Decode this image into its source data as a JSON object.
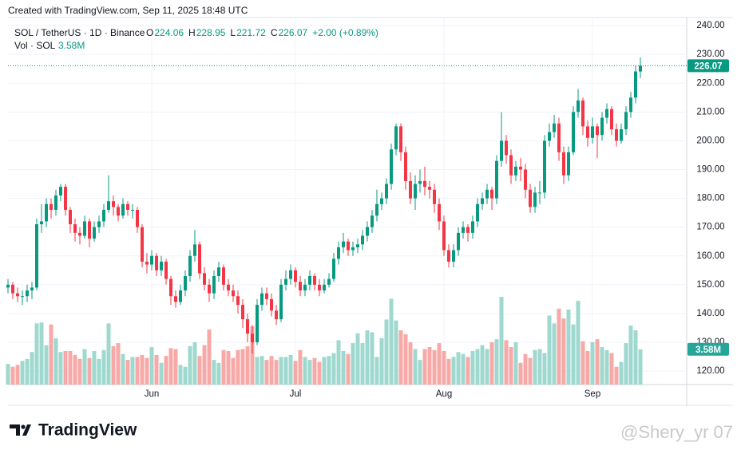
{
  "chart_data": {
    "type": "candlestick",
    "created_text": "Created with TradingView.com, Sep 11, 2025 18:48 UTC",
    "legend": {
      "o": "O",
      "h": "H",
      "l": "L",
      "c": "C",
      "change": "+2.00 (+0.89%)"
    },
    "brand": "TradingView",
    "watermark": "@Shery_yr 07",
    "categories": [
      null,
      null,
      null,
      null,
      null,
      null,
      null,
      null,
      null,
      null,
      null,
      null,
      null,
      null,
      null,
      null,
      null,
      null,
      null,
      null,
      null,
      null,
      null,
      null,
      null,
      null,
      null,
      null,
      null,
      null,
      "Jun",
      null,
      null,
      null,
      null,
      null,
      null,
      null,
      null,
      null,
      null,
      null,
      null,
      null,
      null,
      null,
      null,
      null,
      null,
      null,
      null,
      null,
      null,
      null,
      null,
      null,
      null,
      null,
      null,
      null,
      "Jul",
      null,
      null,
      null,
      null,
      null,
      null,
      null,
      null,
      null,
      null,
      null,
      null,
      null,
      null,
      null,
      null,
      null,
      null,
      null,
      null,
      null,
      null,
      null,
      null,
      null,
      null,
      null,
      null,
      null,
      null,
      "Aug",
      null,
      null,
      null,
      null,
      null,
      null,
      null,
      null,
      null,
      null,
      null,
      null,
      null,
      null,
      null,
      null,
      null,
      null,
      null,
      null,
      null,
      null,
      null,
      null,
      null,
      null,
      null,
      null,
      null,
      null,
      "Sep",
      null,
      null,
      null,
      null,
      null,
      null,
      null,
      null,
      null,
      null
    ],
    "series": [
      {
        "name": "SOL / TetherUS · 1D · Binance",
        "up_color": "#089981",
        "down_color": "#f23645",
        "open": [
          149,
          150,
          147,
          146,
          146,
          148,
          149,
          171,
          172,
          178,
          176,
          181,
          184,
          176,
          171,
          168,
          167,
          172,
          166,
          170,
          172,
          176,
          179,
          177,
          174,
          178,
          176,
          176,
          170,
          158,
          157,
          160,
          155,
          158,
          152,
          146,
          144,
          148,
          153,
          160,
          164,
          154,
          150,
          147,
          153,
          156,
          150,
          148,
          146,
          143,
          138,
          133,
          130,
          143,
          147,
          145,
          141,
          138,
          150,
          152,
          155,
          151,
          148,
          150,
          153,
          150,
          148,
          150,
          152,
          159,
          163,
          165,
          162,
          163,
          164,
          167,
          170,
          174,
          178,
          180,
          185,
          197,
          205,
          196,
          186,
          180,
          185,
          186,
          184,
          183,
          178,
          172,
          162,
          158,
          162,
          168,
          170,
          168,
          172,
          178,
          180,
          183,
          180,
          193,
          200,
          195,
          188,
          191,
          190,
          183,
          177,
          182,
          182,
          200,
          203,
          206,
          196,
          188,
          196,
          210,
          214,
          205,
          201,
          205,
          202,
          208,
          211,
          204,
          200,
          204,
          210,
          215,
          224.06
        ],
        "high": [
          152,
          151,
          149,
          148,
          150,
          151,
          173,
          178,
          180,
          180,
          183,
          185,
          185,
          177,
          173,
          170,
          174,
          173,
          172,
          174,
          178,
          188,
          181,
          178,
          180,
          179,
          178,
          177,
          171,
          161,
          162,
          161,
          160,
          159,
          153,
          148,
          150,
          155,
          162,
          169,
          165,
          156,
          152,
          155,
          158,
          157,
          152,
          150,
          148,
          145,
          140,
          136,
          145,
          149,
          149,
          147,
          143,
          152,
          155,
          157,
          156,
          153,
          152,
          155,
          154,
          152,
          152,
          154,
          161,
          165,
          168,
          166,
          165,
          166,
          169,
          172,
          176,
          183,
          182,
          187,
          199,
          206,
          206,
          198,
          189,
          188,
          190,
          191,
          186,
          185,
          180,
          174,
          164,
          164,
          170,
          172,
          171,
          174,
          180,
          182,
          185,
          184,
          195,
          210,
          202,
          197,
          193,
          194,
          192,
          185,
          184,
          186,
          202,
          206,
          209,
          208,
          198,
          198,
          212,
          218,
          215,
          207,
          208,
          206,
          210,
          213,
          212,
          206,
          206,
          212,
          217,
          226,
          228.95
        ],
        "low": [
          147,
          145,
          144,
          143,
          144,
          145,
          148,
          168,
          170,
          173,
          174,
          179,
          174,
          168,
          165,
          164,
          166,
          163,
          165,
          168,
          170,
          175,
          174,
          172,
          173,
          174,
          173,
          168,
          156,
          154,
          155,
          153,
          153,
          150,
          143,
          142,
          143,
          146,
          151,
          158,
          152,
          148,
          144,
          145,
          151,
          148,
          146,
          144,
          140,
          135,
          130,
          126,
          129,
          141,
          143,
          139,
          136,
          137,
          148,
          150,
          149,
          146,
          146,
          148,
          148,
          146,
          147,
          149,
          151,
          157,
          161,
          160,
          160,
          161,
          162,
          165,
          168,
          172,
          176,
          178,
          183,
          195,
          193,
          183,
          178,
          176,
          182,
          181,
          180,
          175,
          169,
          160,
          156,
          156,
          160,
          166,
          165,
          166,
          170,
          176,
          178,
          176,
          178,
          191,
          192,
          185,
          186,
          186,
          180,
          175,
          175,
          178,
          180,
          198,
          201,
          193,
          185,
          186,
          195,
          208,
          202,
          198,
          199,
          194,
          200,
          206,
          202,
          198,
          199,
          202,
          208,
          213,
          221.72
        ],
        "close": [
          150,
          147,
          146,
          146,
          148,
          149,
          171,
          172,
          178,
          176,
          181,
          184,
          176,
          171,
          168,
          167,
          172,
          166,
          170,
          172,
          176,
          179,
          177,
          174,
          178,
          176,
          176,
          170,
          158,
          157,
          160,
          155,
          158,
          152,
          146,
          144,
          148,
          153,
          160,
          164,
          154,
          150,
          147,
          153,
          156,
          150,
          148,
          146,
          143,
          138,
          133,
          130,
          143,
          147,
          145,
          141,
          138,
          150,
          152,
          155,
          151,
          148,
          150,
          153,
          150,
          148,
          150,
          152,
          159,
          163,
          165,
          162,
          163,
          164,
          167,
          170,
          174,
          178,
          180,
          185,
          197,
          205,
          196,
          186,
          180,
          185,
          186,
          184,
          183,
          178,
          172,
          162,
          158,
          162,
          168,
          170,
          168,
          172,
          178,
          180,
          183,
          180,
          193,
          200,
          195,
          188,
          191,
          190,
          183,
          177,
          182,
          182,
          200,
          203,
          206,
          196,
          188,
          196,
          210,
          214,
          205,
          201,
          205,
          202,
          208,
          211,
          204,
          200,
          204,
          210,
          215,
          224.07,
          226.07
        ]
      },
      {
        "name": "Vol · SOL",
        "up_color": "#9fd8cf",
        "down_color": "#f7a9a7",
        "last_value_label": "3.58M",
        "values": [
          2.1,
          1.8,
          2.0,
          2.4,
          2.6,
          3.3,
          6.2,
          6.3,
          4.0,
          6.1,
          4.7,
          3.3,
          3.4,
          3.4,
          3.0,
          2.6,
          3.6,
          2.7,
          3.4,
          2.6,
          3.5,
          6.2,
          3.9,
          4.2,
          3.1,
          2.5,
          2.8,
          2.8,
          3.0,
          2.7,
          3.8,
          3.0,
          2.2,
          2.9,
          3.7,
          3.6,
          2.0,
          1.8,
          3.9,
          4.3,
          2.9,
          4.0,
          5.6,
          2.5,
          2.2,
          3.5,
          3.4,
          2.7,
          3.5,
          3.6,
          3.9,
          5.9,
          2.8,
          2.9,
          2.5,
          2.9,
          2.5,
          2.8,
          2.8,
          3.0,
          2.4,
          3.5,
          2.8,
          2.5,
          2.7,
          2.3,
          2.8,
          2.9,
          3.2,
          4.5,
          3.4,
          3.1,
          4.2,
          5.2,
          4.2,
          5.5,
          5.3,
          2.8,
          4.7,
          6.6,
          8.7,
          6.5,
          5.5,
          5.1,
          4.3,
          3.6,
          2.5,
          3.6,
          3.8,
          3.5,
          4.2,
          3.4,
          2.6,
          2.8,
          3.3,
          3.1,
          2.8,
          3.4,
          3.6,
          4.0,
          3.6,
          4.3,
          4.6,
          8.9,
          4.5,
          3.8,
          4.3,
          2.2,
          3.1,
          2.7,
          3.5,
          3.6,
          3.2,
          7.0,
          6.2,
          7.7,
          6.7,
          7.6,
          6.1,
          8.5,
          4.4,
          3.4,
          4.3,
          4.6,
          3.8,
          3.5,
          3.2,
          1.8,
          2.3,
          4.2,
          6.0,
          5.5,
          3.58
        ]
      }
    ],
    "ylim": [
      115.3,
      242.8
    ],
    "yticks": [
      {
        "value": 120,
        "label": "120.00"
      },
      {
        "value": 130,
        "label": "130.00"
      },
      {
        "value": 140,
        "label": "140.00"
      },
      {
        "value": 150,
        "label": "150.00"
      },
      {
        "value": 160,
        "label": "160.00"
      },
      {
        "value": 170,
        "label": "170.00"
      },
      {
        "value": 180,
        "label": "180.00"
      },
      {
        "value": 190,
        "label": "190.00"
      },
      {
        "value": 200,
        "label": "200.00"
      },
      {
        "value": 210,
        "label": "210.00"
      },
      {
        "value": 220,
        "label": "220.00"
      },
      {
        "value": 230,
        "label": "230.00"
      },
      {
        "value": 240,
        "label": "240.00"
      }
    ],
    "grid": true
  }
}
